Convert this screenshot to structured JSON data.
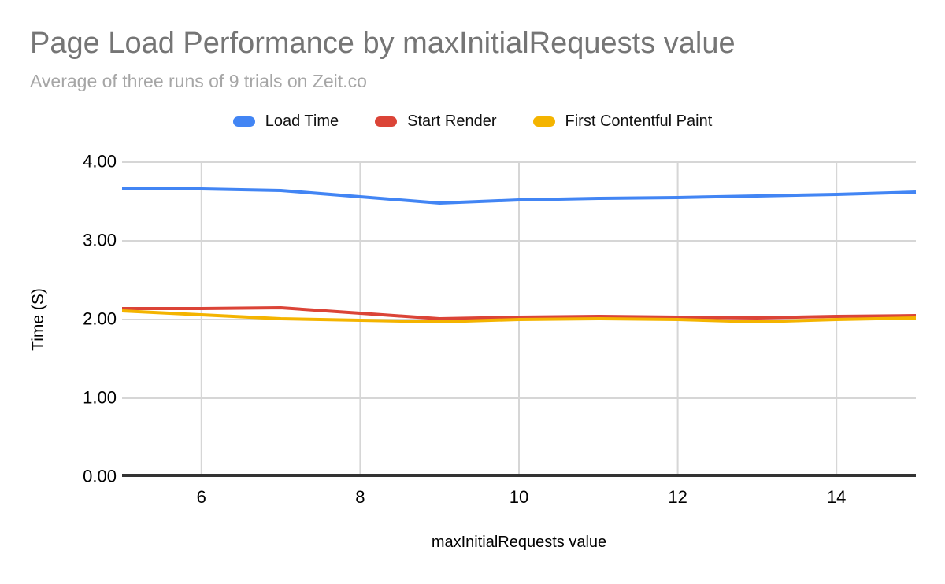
{
  "chart_data": {
    "type": "line",
    "title": "Page Load Performance by maxInitialRequests value",
    "subtitle": "Average of three runs of 9 trials on Zeit.co",
    "xlabel": "maxInitialRequests value",
    "ylabel": "Time (S)",
    "x": [
      5,
      6,
      7,
      8,
      9,
      10,
      11,
      12,
      13,
      14,
      15
    ],
    "xlim": [
      5,
      15
    ],
    "ylim": [
      0,
      4
    ],
    "x_tick_values": [
      6,
      8,
      10,
      12,
      14
    ],
    "x_tick_labels": [
      "6",
      "8",
      "10",
      "12",
      "14"
    ],
    "y_tick_values": [
      0,
      1,
      2,
      3,
      4
    ],
    "y_tick_labels": [
      "0.00",
      "1.00",
      "2.00",
      "3.00",
      "4.00"
    ],
    "grid": true,
    "legend_position": "top",
    "series": [
      {
        "name": "Load Time",
        "color": "#4285F4",
        "values": [
          3.67,
          3.66,
          3.64,
          3.56,
          3.48,
          3.52,
          3.54,
          3.55,
          3.57,
          3.59,
          3.62
        ]
      },
      {
        "name": "Start Render",
        "color": "#DB4437",
        "values": [
          2.14,
          2.14,
          2.15,
          2.08,
          2.01,
          2.03,
          2.04,
          2.03,
          2.02,
          2.04,
          2.05
        ]
      },
      {
        "name": "First Contentful Paint",
        "color": "#F4B400",
        "values": [
          2.11,
          2.06,
          2.01,
          1.99,
          1.97,
          2.0,
          2.01,
          2.0,
          1.97,
          2.0,
          2.02
        ]
      }
    ],
    "colors": {
      "title": "#757575",
      "subtitle": "#a6a6a6",
      "tick_label": "#000000",
      "gridline": "#d6d6d6",
      "axis_line": "#333333",
      "background": "#ffffff"
    }
  }
}
